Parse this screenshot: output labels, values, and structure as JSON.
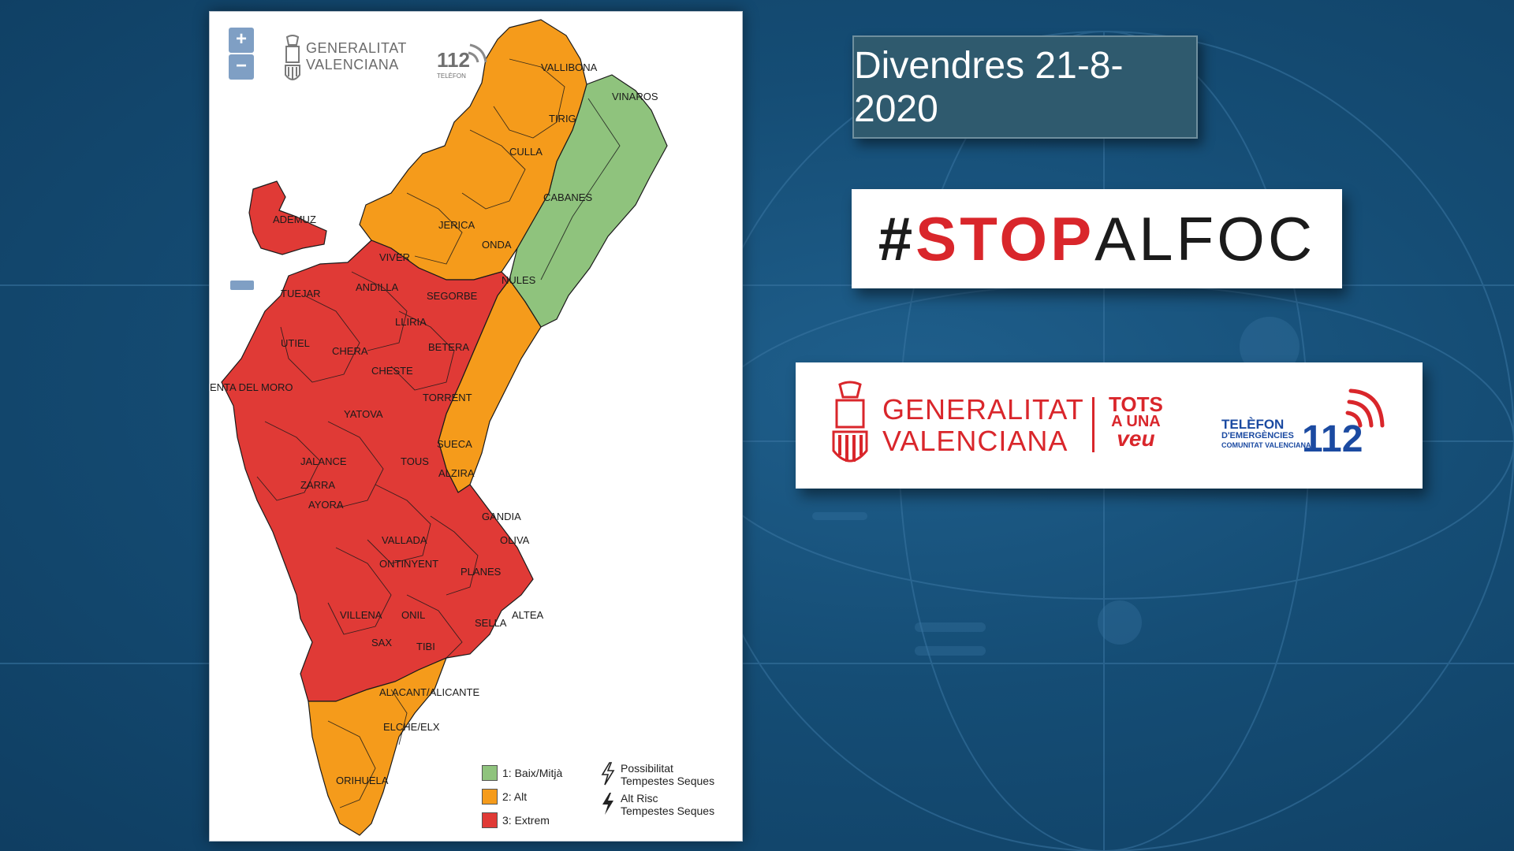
{
  "header": {
    "date": "Divendres 21-8-2020",
    "hashtag_prefix": "#",
    "hashtag_stop": "STOP",
    "hashtag_alfoc": "ALFOC"
  },
  "brand": {
    "generalitat_line1": "GENERALITAT",
    "generalitat_line2": "VALENCIANA",
    "tots_line1": "TOTS",
    "tots_line2": "A UNA",
    "tots_line3": "veu",
    "telefon_line1": "TELÈFON",
    "telefon_line2": "D'EMERGÈNCIES",
    "telefon_line3": "COMUNITAT VALENCIANA",
    "number": "112",
    "accent_red": "#d9262b",
    "accent_blue": "#1b4aa1"
  },
  "map": {
    "zoom_in": "+",
    "zoom_out": "−",
    "logo_line1": "GENERALITAT",
    "logo_line2": "VALENCIANA",
    "tel_number": "112",
    "tel_caption": "TELÈFON",
    "colors": {
      "low": "#8fc37d",
      "high": "#f59b1b",
      "extreme": "#e03a36"
    },
    "place_labels": [
      "VALLIBONA",
      "VINAROS",
      "TIRIG",
      "CULLA",
      "CABANES",
      "ADEMUZ",
      "VIVER",
      "ONDA",
      "JERICA",
      "NULES",
      "TUEJAR",
      "ANDILLA",
      "SEGORBE",
      "LLIRIA",
      "UTIEL",
      "CHERA",
      "BETERA",
      "CHESTE",
      "ENTA DEL MORO",
      "TORRENT",
      "YATOVA",
      "SUECA",
      "TOUS",
      "ALZIRA",
      "JALANCE",
      "ZARRA",
      "AYORA",
      "GANDIA",
      "VALLADA",
      "OLIVA",
      "ONTINYENT",
      "PLANES",
      "VILLENA",
      "ONIL",
      "ALTEA",
      "SELLA",
      "SAX",
      "TIBI",
      "ALACANT/ALICANTE",
      "ELCHE/ELX",
      "ORIHUELA"
    ],
    "legend": {
      "low": "1: Baix/Mitjà",
      "high": "2: Alt",
      "extreme": "3: Extrem",
      "storm_possible_line1": "Possibilitat",
      "storm_possible_line2": "Tempestes Seques",
      "storm_high_line1": "Alt Risc",
      "storm_high_line2": "Tempestes Seques"
    }
  }
}
